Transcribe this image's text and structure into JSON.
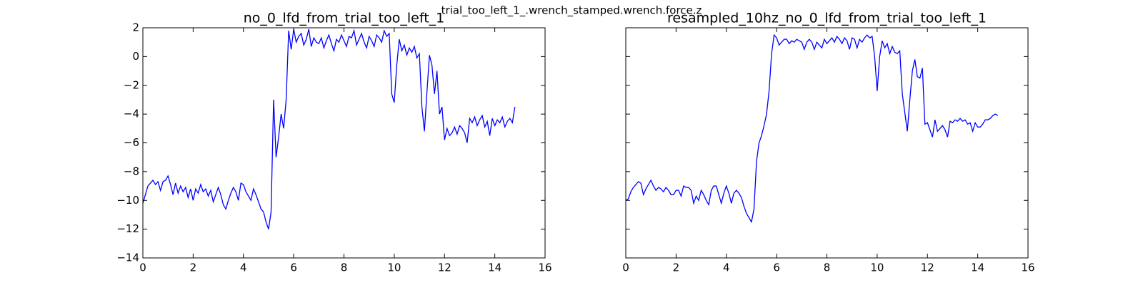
{
  "title": "trial_too_left_1_.wrench_stamped.wrench.force.z",
  "chart_data": [
    {
      "type": "line",
      "title": "no_0_lfd_from_trial_too_left_1",
      "color": "#0000ff",
      "x": [
        0,
        0.1,
        0.2,
        0.3,
        0.4,
        0.5,
        0.6,
        0.7,
        0.8,
        0.9,
        1,
        1.1,
        1.2,
        1.3,
        1.4,
        1.5,
        1.6,
        1.7,
        1.8,
        1.9,
        2,
        2.1,
        2.2,
        2.3,
        2.4,
        2.5,
        2.6,
        2.7,
        2.8,
        2.9,
        3,
        3.1,
        3.2,
        3.3,
        3.4,
        3.5,
        3.6,
        3.7,
        3.8,
        3.9,
        4,
        4.1,
        4.2,
        4.3,
        4.4,
        4.5,
        4.6,
        4.7,
        4.8,
        4.9,
        5,
        5.1,
        5.2,
        5.3,
        5.4,
        5.5,
        5.6,
        5.7,
        5.8,
        5.9,
        6,
        6.1,
        6.2,
        6.3,
        6.4,
        6.5,
        6.6,
        6.7,
        6.8,
        6.9,
        7,
        7.1,
        7.2,
        7.3,
        7.4,
        7.5,
        7.6,
        7.7,
        7.8,
        7.9,
        8,
        8.1,
        8.2,
        8.3,
        8.4,
        8.5,
        8.6,
        8.7,
        8.8,
        8.9,
        9,
        9.1,
        9.2,
        9.3,
        9.4,
        9.5,
        9.6,
        9.7,
        9.8,
        9.9,
        10,
        10.1,
        10.2,
        10.3,
        10.4,
        10.5,
        10.6,
        10.7,
        10.8,
        10.9,
        11,
        11.1,
        11.2,
        11.3,
        11.4,
        11.5,
        11.6,
        11.7,
        11.8,
        11.9,
        12,
        12.1,
        12.2,
        12.3,
        12.4,
        12.5,
        12.6,
        12.7,
        12.8,
        12.9,
        13,
        13.1,
        13.2,
        13.3,
        13.4,
        13.5,
        13.6,
        13.7,
        13.8,
        13.9,
        14,
        14.1,
        14.2,
        14.3,
        14.4,
        14.5,
        14.6,
        14.7,
        14.8
      ],
      "values": [
        -10.2,
        -9.6,
        -9.0,
        -8.8,
        -8.6,
        -8.9,
        -8.7,
        -9.3,
        -8.7,
        -8.6,
        -8.3,
        -8.9,
        -9.6,
        -8.8,
        -9.5,
        -9.0,
        -9.4,
        -9.1,
        -9.8,
        -9.2,
        -10.0,
        -9.2,
        -9.5,
        -8.9,
        -9.4,
        -9.2,
        -9.7,
        -9.3,
        -10.1,
        -9.6,
        -9.1,
        -9.6,
        -10.3,
        -10.6,
        -10.0,
        -9.5,
        -9.1,
        -9.4,
        -10.0,
        -8.8,
        -8.9,
        -9.4,
        -9.7,
        -10.0,
        -9.2,
        -9.6,
        -10.1,
        -10.6,
        -10.8,
        -11.5,
        -12.0,
        -10.8,
        -3.0,
        -7.0,
        -5.6,
        -4.0,
        -5.0,
        -3.0,
        1.8,
        0.5,
        1.9,
        1.0,
        1.4,
        1.6,
        0.8,
        1.2,
        1.9,
        0.7,
        1.3,
        1.0,
        0.9,
        1.3,
        0.6,
        1.1,
        1.5,
        0.9,
        0.4,
        1.2,
        1.0,
        1.5,
        1.1,
        0.7,
        1.4,
        1.3,
        1.8,
        0.8,
        1.2,
        1.6,
        1.0,
        0.6,
        1.4,
        1.1,
        0.7,
        1.5,
        1.3,
        1.0,
        1.8,
        1.4,
        1.6,
        -2.6,
        -3.2,
        -0.6,
        1.2,
        0.4,
        0.8,
        0.1,
        0.6,
        0.3,
        0.7,
        -0.1,
        0.2,
        -3.5,
        -5.2,
        -2.5,
        0.1,
        -0.6,
        -2.6,
        -1.0,
        -4.0,
        -3.5,
        -5.8,
        -5.0,
        -5.5,
        -5.3,
        -4.9,
        -5.4,
        -4.8,
        -5.0,
        -5.3,
        -6.0,
        -4.3,
        -4.6,
        -4.2,
        -4.8,
        -4.4,
        -4.1,
        -4.9,
        -4.5,
        -5.5,
        -4.3,
        -4.8,
        -4.4,
        -4.6,
        -4.2,
        -4.9,
        -4.5,
        -4.3,
        -4.6,
        -3.5
      ],
      "xlim": [
        0,
        16
      ],
      "xticks": [
        0,
        2,
        4,
        6,
        8,
        10,
        12,
        14,
        16
      ],
      "ylim": [
        -14,
        2
      ],
      "yticks": [
        {
          "value": -14,
          "label": "−14"
        },
        {
          "value": -12,
          "label": "−12"
        },
        {
          "value": -10,
          "label": "−10"
        },
        {
          "value": -8,
          "label": "−8"
        },
        {
          "value": -6,
          "label": "−6"
        },
        {
          "value": -4,
          "label": "−4"
        },
        {
          "value": -2,
          "label": "−2"
        },
        0,
        2
      ]
    },
    {
      "type": "line",
      "title": "resampled_10hz_no_0_lfd_from_trial_too_left_1",
      "color": "#0000ff",
      "x": [
        0,
        0.1,
        0.2,
        0.3,
        0.4,
        0.5,
        0.6,
        0.7,
        0.8,
        0.9,
        1,
        1.1,
        1.2,
        1.3,
        1.4,
        1.5,
        1.6,
        1.7,
        1.8,
        1.9,
        2,
        2.1,
        2.2,
        2.3,
        2.4,
        2.5,
        2.6,
        2.7,
        2.8,
        2.9,
        3,
        3.1,
        3.2,
        3.3,
        3.4,
        3.5,
        3.6,
        3.7,
        3.8,
        3.9,
        4,
        4.1,
        4.2,
        4.3,
        4.4,
        4.5,
        4.6,
        4.7,
        4.8,
        4.9,
        5,
        5.1,
        5.2,
        5.3,
        5.4,
        5.5,
        5.6,
        5.7,
        5.8,
        5.9,
        6,
        6.1,
        6.2,
        6.3,
        6.4,
        6.5,
        6.6,
        6.7,
        6.8,
        6.9,
        7,
        7.1,
        7.2,
        7.3,
        7.4,
        7.5,
        7.6,
        7.7,
        7.8,
        7.9,
        8,
        8.1,
        8.2,
        8.3,
        8.4,
        8.5,
        8.6,
        8.7,
        8.8,
        8.9,
        9,
        9.1,
        9.2,
        9.3,
        9.4,
        9.5,
        9.6,
        9.7,
        9.8,
        9.9,
        10,
        10.1,
        10.2,
        10.3,
        10.4,
        10.5,
        10.6,
        10.7,
        10.8,
        10.9,
        11,
        11.1,
        11.2,
        11.3,
        11.4,
        11.5,
        11.6,
        11.7,
        11.8,
        11.9,
        12,
        12.1,
        12.2,
        12.3,
        12.4,
        12.5,
        12.6,
        12.7,
        12.8,
        12.9,
        13,
        13.1,
        13.2,
        13.3,
        13.4,
        13.5,
        13.6,
        13.7,
        13.8,
        13.9,
        14,
        14.1,
        14.2,
        14.3,
        14.4,
        14.5,
        14.6,
        14.7,
        14.8
      ],
      "values": [
        -10,
        -9.9,
        -9.4,
        -9.1,
        -8.9,
        -8.7,
        -8.8,
        -9.6,
        -9.2,
        -8.9,
        -8.6,
        -9.0,
        -9.3,
        -9.1,
        -9.2,
        -9.4,
        -9.1,
        -9.3,
        -9.6,
        -9.6,
        -9.3,
        -9.3,
        -9.7,
        -9.0,
        -9.1,
        -9.1,
        -9.3,
        -10.2,
        -9.7,
        -10.0,
        -9.3,
        -9.6,
        -10.0,
        -10.3,
        -9.3,
        -9.0,
        -9.0,
        -9.6,
        -10.2,
        -9.5,
        -9.0,
        -9.5,
        -10.2,
        -9.5,
        -9.3,
        -9.5,
        -9.8,
        -10.4,
        -10.9,
        -11.2,
        -11.5,
        -10.6,
        -7.3,
        -6.0,
        -5.5,
        -4.8,
        -4.0,
        -2.4,
        0.2,
        1.5,
        1.3,
        0.8,
        1.0,
        1.2,
        1.2,
        0.9,
        1.1,
        1.0,
        1.2,
        1.1,
        1.0,
        0.5,
        1.0,
        1.2,
        1.0,
        0.5,
        1.0,
        0.8,
        0.6,
        1.2,
        0.9,
        1.1,
        1.3,
        1.0,
        1.4,
        1.2,
        0.9,
        1.3,
        1.1,
        0.5,
        1.3,
        1.2,
        0.6,
        1.2,
        1.0,
        1.3,
        1.5,
        1.3,
        1.4,
        0.0,
        -2.4,
        0.0,
        1.1,
        0.6,
        0.9,
        0.2,
        0.7,
        0.3,
        0.2,
        0.4,
        -2.6,
        -3.9,
        -5.2,
        -3.0,
        -1.0,
        -0.2,
        -1.4,
        -1.5,
        -0.8,
        -4.7,
        -4.6,
        -5.1,
        -5.6,
        -4.4,
        -5.2,
        -5.0,
        -4.8,
        -5.1,
        -5.6,
        -4.5,
        -4.6,
        -4.4,
        -4.5,
        -4.3,
        -4.5,
        -4.4,
        -4.7,
        -4.6,
        -5.2,
        -4.6,
        -4.9,
        -4.9,
        -4.7,
        -4.4,
        -4.4,
        -4.3,
        -4.1,
        -4.0,
        -4.1
      ],
      "xlim": [
        0,
        16
      ],
      "xticks": [
        0,
        2,
        4,
        6,
        8,
        10,
        12,
        14,
        16
      ],
      "ylim": [
        -14,
        2
      ],
      "yticks": [
        -14,
        -12,
        -10,
        -8,
        -6,
        -4,
        -2,
        0,
        2
      ]
    }
  ]
}
